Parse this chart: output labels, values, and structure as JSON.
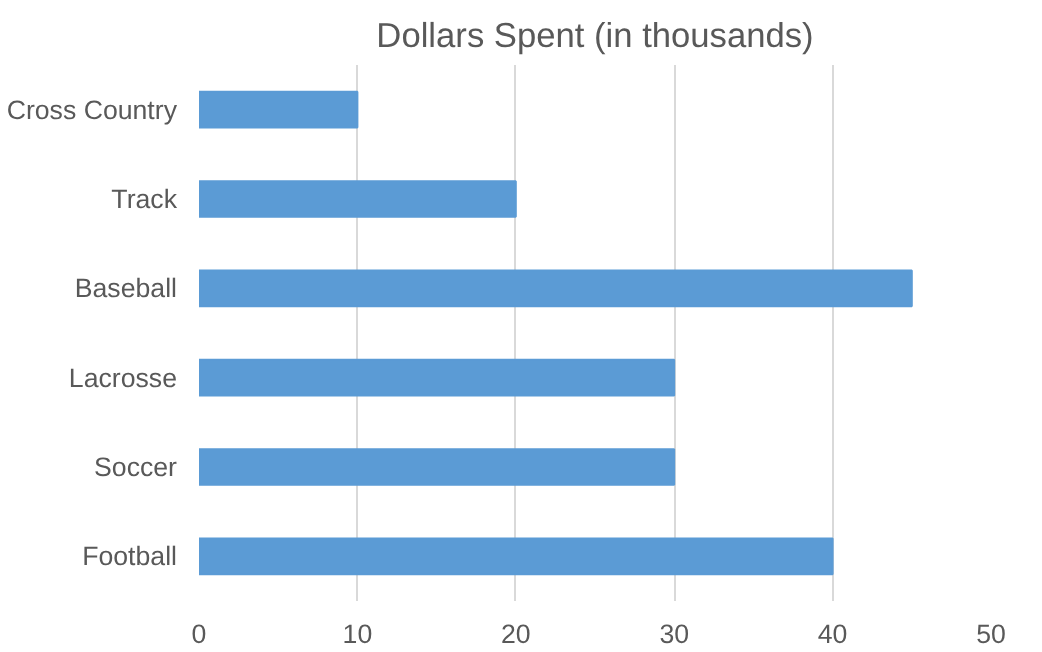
{
  "chart_data": {
    "type": "bar",
    "orientation": "horizontal",
    "title": "Dollars Spent (in thousands)",
    "categories": [
      "Cross Country",
      "Track",
      "Baseball",
      "Lacrosse",
      "Soccer",
      "Football"
    ],
    "values": [
      10,
      20,
      45,
      30,
      30,
      40
    ],
    "color": "#5b9bd5",
    "xlim": [
      0,
      50
    ],
    "xticks": [
      0,
      10,
      20,
      30,
      40,
      50
    ],
    "grid": "x"
  }
}
